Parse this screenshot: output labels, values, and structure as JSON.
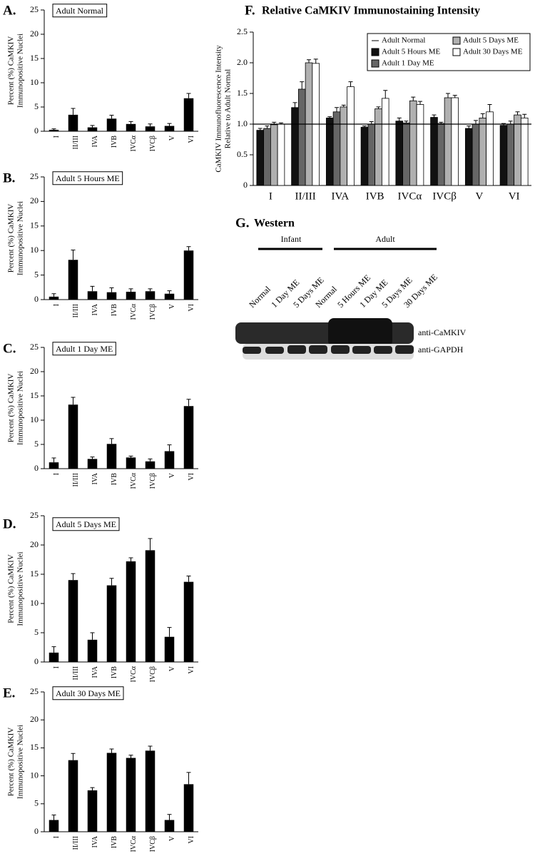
{
  "chart_data": [
    {
      "type": "bar",
      "panel": "A.",
      "title": "Adult Normal",
      "y_label": [
        "Percent (%) CaMKIV",
        "Immunopositive Nuclei"
      ],
      "categories": [
        "I",
        "II/III",
        "IVA",
        "IVB",
        "IVCα",
        "IVCβ",
        "V",
        "VI"
      ],
      "values": [
        0.3,
        3.4,
        0.8,
        2.6,
        1.5,
        1.0,
        1.1,
        6.8
      ],
      "errors": [
        0.2,
        1.3,
        0.4,
        0.7,
        0.5,
        0.5,
        0.5,
        1.0
      ],
      "color": "#000000",
      "ylim": [
        0,
        25
      ],
      "yticks": [
        0,
        5,
        10,
        15,
        20,
        25
      ]
    },
    {
      "type": "bar",
      "panel": "B.",
      "title": "Adult 5 Hours ME",
      "y_label": [
        "Percent (%) CaMKIV",
        "Immunopositive Nuclei"
      ],
      "categories": [
        "I",
        "II/III",
        "IVA",
        "IVB",
        "IVCα",
        "IVCβ",
        "V",
        "VI"
      ],
      "values": [
        0.6,
        8.1,
        1.7,
        1.5,
        1.6,
        1.7,
        1.2,
        10.0
      ],
      "errors": [
        0.6,
        2.0,
        1.0,
        0.9,
        0.6,
        0.5,
        0.6,
        0.8
      ],
      "color": "#000000",
      "ylim": [
        0,
        25
      ],
      "yticks": [
        0,
        5,
        10,
        15,
        20,
        25
      ]
    },
    {
      "type": "bar",
      "panel": "C.",
      "title": "Adult 1 Day ME",
      "y_label": [
        "Percent (%) CaMKIV",
        "Immunopositive Nuclei"
      ],
      "categories": [
        "I",
        "II/III",
        "IVA",
        "IVB",
        "IVCα",
        "IVCβ",
        "V",
        "VI"
      ],
      "values": [
        1.3,
        13.2,
        2.0,
        5.1,
        2.3,
        1.5,
        3.6,
        12.9
      ],
      "errors": [
        0.9,
        1.5,
        0.4,
        1.1,
        0.3,
        0.5,
        1.3,
        1.4
      ],
      "color": "#000000",
      "ylim": [
        0,
        25
      ],
      "yticks": [
        0,
        5,
        10,
        15,
        20,
        25
      ]
    },
    {
      "type": "bar",
      "panel": "D.",
      "title": "Adult 5 Days ME",
      "y_label": [
        "Percent (%) CaMKIV",
        "Immunopositive Nuclei"
      ],
      "categories": [
        "I",
        "II/III",
        "IVA",
        "IVB",
        "IVCα",
        "IVCβ",
        "V",
        "VI"
      ],
      "values": [
        1.6,
        14.0,
        3.8,
        13.1,
        17.2,
        19.1,
        4.3,
        13.7
      ],
      "errors": [
        1.0,
        1.1,
        1.2,
        1.2,
        0.6,
        2.0,
        1.6,
        1.0
      ],
      "color": "#000000",
      "ylim": [
        0,
        25
      ],
      "yticks": [
        0,
        5,
        10,
        15,
        20,
        25
      ]
    },
    {
      "type": "bar",
      "panel": "E.",
      "title": "Adult 30 Days ME",
      "y_label": [
        "Percent (%) CaMKIV",
        "Immunopositive Nuclei"
      ],
      "categories": [
        "I",
        "II/III",
        "IVA",
        "IVB",
        "IVCα",
        "IVCβ",
        "V",
        "VI"
      ],
      "values": [
        2.1,
        12.8,
        7.4,
        14.1,
        13.2,
        14.5,
        2.1,
        8.5
      ],
      "errors": [
        0.9,
        1.2,
        0.5,
        0.7,
        0.5,
        0.8,
        1.0,
        2.1
      ],
      "color": "#000000",
      "ylim": [
        0,
        25
      ],
      "yticks": [
        0,
        5,
        10,
        15,
        20,
        25
      ]
    },
    {
      "type": "bar",
      "panel": "F.",
      "title": "Relative CaMKIV Immunostaining Intensity",
      "y_label": [
        "CaMKIV Immunofluorescence Intensity",
        "Relative to Adult Normal"
      ],
      "categories": [
        "I",
        "II/III",
        "IVA",
        "IVB",
        "IVCα",
        "IVCβ",
        "V",
        "VI"
      ],
      "reference": {
        "name": "Adult Normal",
        "value": 1
      },
      "series": [
        {
          "name": "Adult 5 Hours ME",
          "color": "#111111",
          "values": [
            0.9,
            1.27,
            1.1,
            0.95,
            1.05,
            1.11,
            0.93,
            0.98
          ],
          "errors": [
            0.03,
            0.08,
            0.02,
            0.02,
            0.05,
            0.04,
            0.04,
            0.03
          ]
        },
        {
          "name": "Adult 1 Day ME",
          "color": "#666666",
          "values": [
            0.93,
            1.57,
            1.2,
            1.0,
            1.02,
            1.01,
            1.0,
            1.0
          ],
          "errors": [
            0.04,
            0.12,
            0.07,
            0.04,
            0.03,
            0.02,
            0.06,
            0.05
          ]
        },
        {
          "name": "Adult 5 Days ME",
          "color": "#b0b0b0",
          "values": [
            0.99,
            2.0,
            1.28,
            1.25,
            1.38,
            1.43,
            1.1,
            1.15
          ],
          "errors": [
            0.04,
            0.05,
            0.03,
            0.03,
            0.06,
            0.07,
            0.07,
            0.05
          ]
        },
        {
          "name": "Adult 30 Days ME",
          "color": "#ffffff",
          "values": [
            1.0,
            1.99,
            1.61,
            1.42,
            1.32,
            1.43,
            1.2,
            1.1
          ],
          "errors": [
            0.02,
            0.07,
            0.08,
            0.13,
            0.05,
            0.04,
            0.12,
            0.06
          ]
        }
      ],
      "ylim": [
        0,
        2.5
      ],
      "yticks": [
        0,
        0.5,
        {
          "value": 1,
          "label": "1.0"
        },
        1.5,
        {
          "value": 2,
          "label": "2.0"
        },
        2.5
      ],
      "legend": "upper right"
    }
  ],
  "western": {
    "panel": "G.",
    "title": "Western",
    "groups": [
      "Infant",
      "Adult"
    ],
    "lanes": [
      "Normal",
      "1 Day ME",
      "5 Days ME",
      "Normal",
      "5 Hours ME",
      "1 Day ME",
      "5 Days ME",
      "30 Days ME"
    ],
    "antibodies": [
      "anti-CaMKIV",
      "anti-GAPDH"
    ]
  }
}
